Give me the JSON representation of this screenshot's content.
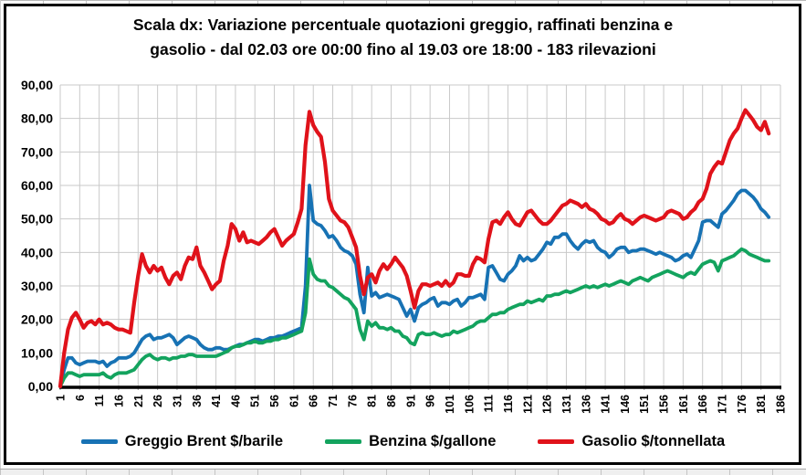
{
  "title": {
    "line1": "Scala dx: Variazione percentuale quotazioni greggio, raffinati benzina e",
    "line2": "gasolio - dal 02.03 ore 00:00 fino al 19.03 ore 18:00 - 183 rilevazioni"
  },
  "colors": {
    "brent_blue": "#1772B4",
    "benzina_green": "#13A35E",
    "gasolio_red": "#E0121A",
    "gridline": "#c9c9c9",
    "axis": "#000000"
  },
  "chart_data": {
    "type": "line",
    "title": "Scala dx: Variazione percentuale quotazioni greggio, raffinati benzina e gasolio - dal 02.03 ore 00:00 fino al 19.03 ore 18:00 - 183 rilevazioni",
    "xlabel": "",
    "ylabel": "",
    "ylim": [
      0,
      90
    ],
    "x_range": [
      1,
      186
    ],
    "n_points": 183,
    "grid": true,
    "legend_position": "bottom",
    "y_ticks": [
      "0,00",
      "10,00",
      "20,00",
      "30,00",
      "40,00",
      "50,00",
      "60,00",
      "70,00",
      "80,00",
      "90,00"
    ],
    "x_ticks": [
      1,
      6,
      11,
      16,
      21,
      26,
      31,
      36,
      41,
      46,
      51,
      56,
      61,
      66,
      71,
      76,
      81,
      86,
      91,
      96,
      101,
      106,
      111,
      116,
      121,
      126,
      131,
      136,
      141,
      146,
      151,
      156,
      161,
      166,
      171,
      176,
      181,
      186
    ],
    "series": [
      {
        "name": "Greggio Brent $/barile",
        "color": "#1772B4",
        "stroke_width": 3.8,
        "values": [
          0,
          5,
          8.5,
          8.5,
          7,
          6.5,
          7,
          7.5,
          7.5,
          7.5,
          7,
          7.5,
          6,
          7,
          7.5,
          8.5,
          8.5,
          8.5,
          9,
          10,
          12,
          14,
          15,
          15.5,
          14,
          14.5,
          14.5,
          15,
          15.5,
          14.5,
          12.5,
          13.5,
          14.5,
          15,
          14.5,
          14,
          12.5,
          11.5,
          11,
          11,
          11.5,
          11.5,
          11,
          11,
          11.5,
          12,
          12.5,
          12.5,
          13,
          13.5,
          14,
          14,
          13.5,
          14,
          14.5,
          14.5,
          15,
          15,
          15.5,
          16,
          16.5,
          17,
          17.5,
          30,
          60,
          49.5,
          48.5,
          48,
          46.5,
          44.5,
          45,
          43.5,
          41.5,
          40.5,
          40,
          39,
          36.5,
          27.5,
          22,
          35.5,
          27,
          28,
          26.5,
          27,
          27.5,
          27,
          26.5,
          26,
          23.5,
          21,
          23,
          19.5,
          23.5,
          24.5,
          25,
          26,
          26.5,
          24,
          25,
          25,
          24.5,
          25.5,
          26,
          24,
          25,
          26.5,
          26.5,
          27,
          27.5,
          26,
          35.5,
          36,
          34,
          32,
          31.5,
          33.5,
          34.5,
          36,
          39,
          37.5,
          38.5,
          37.5,
          38,
          39.5,
          41,
          43,
          42.5,
          44.5,
          44.5,
          45.5,
          45.5,
          43.5,
          42,
          41,
          42.5,
          43.5,
          43,
          43.5,
          41.5,
          40.5,
          40,
          38.5,
          39.5,
          41,
          41.5,
          41.5,
          40,
          40.5,
          40.5,
          41,
          41,
          40.5,
          40,
          39.5,
          40,
          39.5,
          39,
          38.5,
          37.5,
          38,
          39,
          39.5,
          38.5,
          41,
          43.5,
          49,
          49.5,
          49.5,
          48.5,
          47.5,
          51.5,
          52.5,
          54,
          55.5,
          57.5,
          58.5,
          58.5,
          57.5,
          56.5,
          55,
          53,
          52,
          50.5
        ]
      },
      {
        "name": "Benzina $/gallone",
        "color": "#13A35E",
        "stroke_width": 3.8,
        "values": [
          0,
          2.5,
          4,
          4,
          3.5,
          3,
          3.5,
          3.5,
          3.5,
          3.5,
          3.5,
          4,
          3,
          2.5,
          3.5,
          4,
          4,
          4,
          4.5,
          5,
          6.5,
          8,
          9,
          9.5,
          8.5,
          8,
          8.5,
          8.5,
          8,
          8.5,
          8.5,
          9,
          9,
          9.5,
          9.5,
          9,
          9,
          9,
          9,
          9,
          9,
          9.5,
          10,
          10.5,
          11.5,
          12,
          12,
          12.5,
          13,
          13,
          13.5,
          13,
          13,
          13.5,
          13.5,
          14,
          14,
          14.5,
          14.5,
          15,
          15.5,
          16,
          16.5,
          22,
          38,
          33.5,
          32,
          31.5,
          31.5,
          30,
          29.5,
          28.5,
          27.5,
          26.5,
          26,
          24.5,
          23,
          17,
          14,
          19.5,
          18,
          19,
          17.5,
          17.5,
          17,
          17.5,
          16.5,
          16.5,
          15,
          14.5,
          13,
          12.5,
          15.5,
          16,
          15.5,
          15.5,
          16,
          15.5,
          15,
          15.5,
          15.5,
          16.5,
          16,
          16.5,
          17,
          17.5,
          18,
          19,
          19.5,
          19.5,
          20.5,
          21.5,
          21.5,
          22,
          22,
          23,
          23.5,
          24,
          24.5,
          24.5,
          25.5,
          25,
          25.5,
          26,
          25.5,
          27,
          27,
          27.5,
          27.5,
          28,
          28.5,
          28,
          28.5,
          29,
          29.5,
          30,
          29.5,
          30,
          29.5,
          30,
          30.5,
          30,
          30.5,
          31,
          31.5,
          31,
          30.5,
          31.5,
          32,
          32.5,
          32,
          31.5,
          32.5,
          33,
          33.5,
          34,
          34.5,
          34,
          33.5,
          33,
          32.5,
          33.5,
          34,
          33.5,
          35,
          36.5,
          37,
          37.5,
          37,
          34.5,
          37.5,
          38,
          38.5,
          39,
          40,
          41,
          40.5,
          39.5,
          39,
          38.5,
          38,
          37.5,
          37.5
        ]
      },
      {
        "name": "Gasolio $/tonnellata",
        "color": "#E0121A",
        "stroke_width": 4.2,
        "values": [
          0,
          10,
          17,
          20.5,
          22,
          20,
          17.5,
          19,
          19.5,
          18.5,
          20,
          18.5,
          19,
          18.5,
          17.5,
          17,
          17,
          16.5,
          16,
          25,
          33,
          39.5,
          36,
          34,
          36,
          34.5,
          35.5,
          32.5,
          30.5,
          33,
          34,
          32,
          36,
          38.5,
          38,
          41.5,
          36,
          34,
          31.5,
          29,
          30.5,
          31.5,
          37.5,
          42,
          48.5,
          47,
          43.5,
          46,
          43,
          43.5,
          43,
          42.5,
          43.5,
          44.5,
          46,
          47,
          44.5,
          42,
          43.5,
          44.5,
          45.5,
          49,
          53,
          72,
          82,
          78,
          76,
          74.5,
          67,
          56,
          52.5,
          51,
          49.5,
          49,
          47.5,
          44.5,
          41.5,
          33,
          27.5,
          32.5,
          33.5,
          31,
          34.5,
          36.5,
          35,
          36.5,
          38.5,
          37,
          35.5,
          33,
          28.5,
          23.5,
          28.5,
          30.5,
          30.5,
          30,
          30.5,
          31,
          30,
          31.5,
          30,
          31,
          33.5,
          33.5,
          33,
          33,
          36.5,
          38.5,
          38,
          37,
          44,
          49,
          49.5,
          48.5,
          50.5,
          52,
          50,
          48.5,
          48,
          50,
          52,
          52.5,
          51,
          49.5,
          48.5,
          48.5,
          49.5,
          51,
          52.5,
          54,
          54.5,
          55.5,
          55,
          54.5,
          53.5,
          54.5,
          53,
          52.5,
          51.5,
          50,
          49.5,
          48.5,
          49,
          50.5,
          51.5,
          50,
          49.5,
          48.5,
          49.5,
          50.5,
          51,
          50.5,
          50,
          49.5,
          50,
          50.5,
          52,
          52.5,
          52,
          51.5,
          50,
          50.5,
          52,
          53,
          55,
          56,
          59,
          63.5,
          65.5,
          67,
          66.5,
          70,
          73.5,
          75.5,
          77,
          80,
          82.5,
          81,
          79.5,
          77.5,
          76.5,
          79,
          75.5
        ]
      }
    ]
  }
}
